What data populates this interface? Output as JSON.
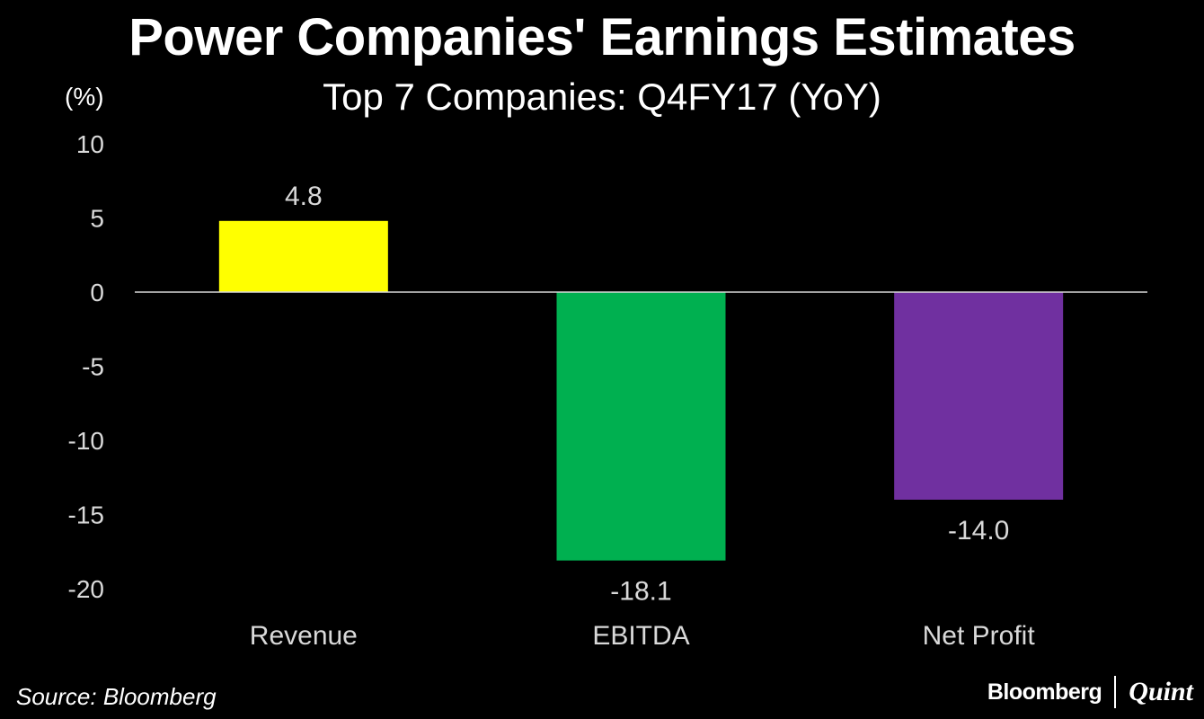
{
  "header": {
    "title": "Power Companies' Earnings Estimates",
    "subtitle": "Top 7 Companies: Q4FY17 (YoY)",
    "unit": "(%)"
  },
  "footer": {
    "source": "Source: Bloomberg",
    "brand_left": "Bloomberg",
    "brand_right": "Quint"
  },
  "chart_data": {
    "type": "bar",
    "title": "Power Companies' Earnings Estimates",
    "subtitle": "Top 7 Companies: Q4FY17 (YoY)",
    "xlabel": "",
    "ylabel": "(%)",
    "categories": [
      "Revenue",
      "EBITDA",
      "Net Profit"
    ],
    "values": [
      4.8,
      -18.1,
      -14.0
    ],
    "value_labels": [
      "4.8",
      "-18.1",
      "-14.0"
    ],
    "colors": [
      "#ffff00",
      "#00b050",
      "#7030a0"
    ],
    "ylim": [
      -20,
      10
    ],
    "yticks": [
      10,
      5,
      0,
      -5,
      -10,
      -15,
      -20
    ],
    "grid": false,
    "legend": "none"
  }
}
